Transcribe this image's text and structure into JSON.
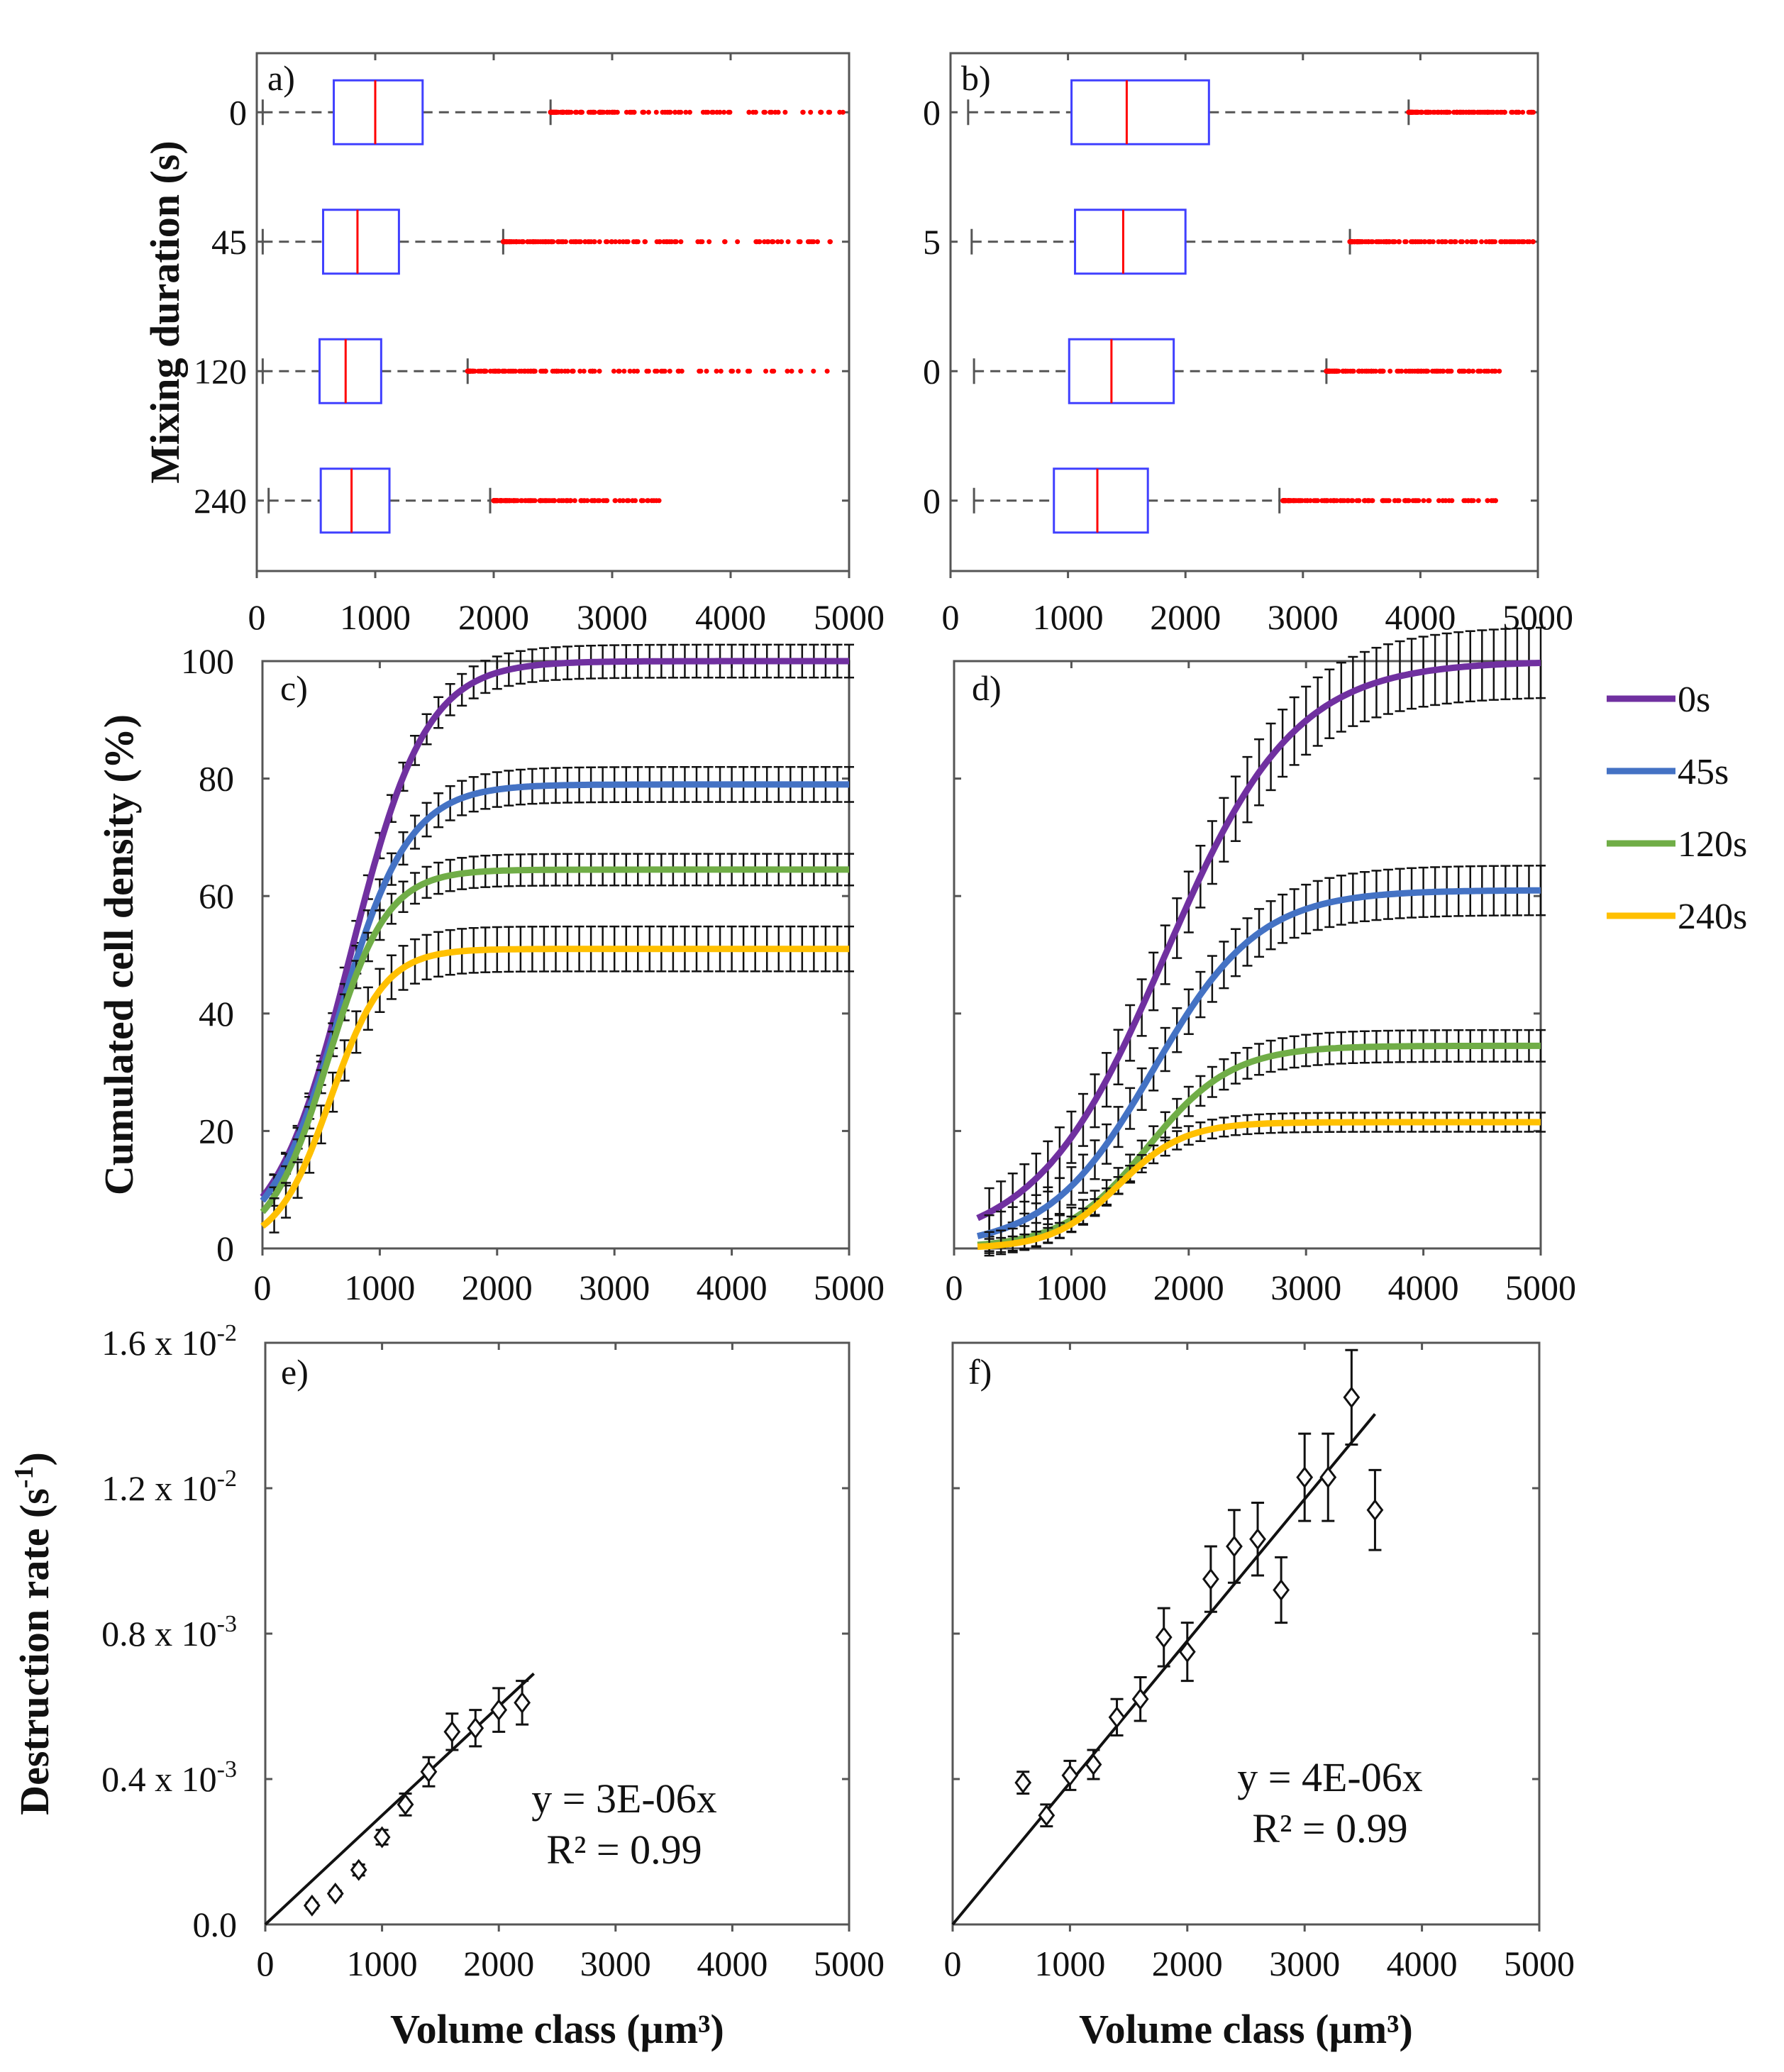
{
  "chart_data": [
    {
      "type": "box",
      "panel": "a)",
      "ylabel": "Mixing duration (s)",
      "xlim": [
        0,
        5000
      ],
      "xticks": [
        0,
        1000,
        2000,
        3000,
        4000,
        5000
      ],
      "categories": [
        "0",
        "45",
        "120",
        "240"
      ],
      "boxes": [
        {
          "min": 50,
          "q1": 650,
          "median": 1000,
          "q3": 1400,
          "max": 2480,
          "outliers_from": 2480,
          "outliers_to": 5000
        },
        {
          "min": 50,
          "q1": 560,
          "median": 850,
          "q3": 1200,
          "max": 2080,
          "outliers_from": 2080,
          "outliers_to": 4900
        },
        {
          "min": 50,
          "q1": 530,
          "median": 750,
          "q3": 1050,
          "max": 1780,
          "outliers_from": 1780,
          "outliers_to": 4850
        },
        {
          "min": 100,
          "q1": 540,
          "median": 800,
          "q3": 1120,
          "max": 1970,
          "outliers_from": 2000,
          "outliers_to": 3400
        }
      ]
    },
    {
      "type": "box",
      "panel": "b)",
      "xlim": [
        0,
        5000
      ],
      "xticks": [
        0,
        1000,
        2000,
        3000,
        4000,
        5000
      ],
      "categories": [
        "0",
        "5",
        "0",
        "0"
      ],
      "boxes": [
        {
          "min": 150,
          "q1": 1030,
          "median": 1500,
          "q3": 2200,
          "max": 3900,
          "outliers_from": 3900,
          "outliers_to": 5000
        },
        {
          "min": 180,
          "q1": 1060,
          "median": 1470,
          "q3": 2000,
          "max": 3400,
          "outliers_from": 3400,
          "outliers_to": 5000
        },
        {
          "min": 200,
          "q1": 1010,
          "median": 1370,
          "q3": 1900,
          "max": 3200,
          "outliers_from": 3200,
          "outliers_to": 4700
        },
        {
          "min": 200,
          "q1": 880,
          "median": 1250,
          "q3": 1680,
          "max": 2800,
          "outliers_from": 2830,
          "outliers_to": 4700
        }
      ]
    },
    {
      "type": "line",
      "panel": "c)",
      "ylabel": "Cumulated cell density (%)",
      "xlim": [
        0,
        5000
      ],
      "ylim": [
        0,
        100
      ],
      "xticks": [
        0,
        1000,
        2000,
        3000,
        4000,
        5000
      ],
      "yticks": [
        0,
        20,
        40,
        60,
        80,
        100
      ],
      "series": [
        {
          "name": "0s",
          "color": "#7030A0",
          "plateau": 100,
          "midpoint": 750,
          "steepness": 320,
          "error": 0.8
        },
        {
          "name": "45s",
          "color": "#4472C4",
          "plateau": 79,
          "midpoint": 650,
          "steepness": 300,
          "error": 1.4
        },
        {
          "name": "120s",
          "color": "#70AD47",
          "plateau": 64.5,
          "midpoint": 560,
          "steepness": 250,
          "error": 1.4
        },
        {
          "name": "240s",
          "color": "#FFC000",
          "plateau": 51,
          "midpoint": 580,
          "steepness": 230,
          "error": 2.8
        }
      ]
    },
    {
      "type": "line",
      "panel": "d)",
      "xlim": [
        0,
        5000
      ],
      "ylim": [
        0,
        100
      ],
      "xticks": [
        0,
        1000,
        2000,
        3000,
        4000,
        5000
      ],
      "series": [
        {
          "name": "0s",
          "color": "#7030A0",
          "plateau": 100,
          "midpoint": 1800,
          "steepness": 550,
          "error": 4
        },
        {
          "name": "45s",
          "color": "#4472C4",
          "plateau": 61,
          "midpoint": 1700,
          "steepness": 450,
          "error": 3
        },
        {
          "name": "120s",
          "color": "#70AD47",
          "plateau": 34.5,
          "midpoint": 1650,
          "steepness": 360,
          "error": 2
        },
        {
          "name": "240s",
          "color": "#FFC000",
          "plateau": 21.5,
          "midpoint": 1400,
          "steepness": 280,
          "error": 1.2
        }
      ]
    },
    {
      "type": "scatter",
      "panel": "e)",
      "ylabel": "Destruction rate (s-1)",
      "xlabel": "Volume class (µm³)",
      "xlim": [
        0,
        5000
      ],
      "ylim": [
        0,
        0.016
      ],
      "xticks": [
        0,
        1000,
        2000,
        3000,
        4000,
        5000
      ],
      "ytick_labels": [
        "0.0",
        "0.4 x 10-3",
        "0.8 x 10-3",
        "1.2 x 10-2",
        "1.6 x 10-2"
      ],
      "points": [
        {
          "x": 400,
          "y": 0.00052,
          "err": 8e-05
        },
        {
          "x": 600,
          "y": 0.00085,
          "err": 8e-05
        },
        {
          "x": 800,
          "y": 0.0015,
          "err": 0.00015
        },
        {
          "x": 1000,
          "y": 0.0024,
          "err": 0.0002
        },
        {
          "x": 1200,
          "y": 0.0033,
          "err": 0.0003
        },
        {
          "x": 1400,
          "y": 0.0042,
          "err": 0.0004
        },
        {
          "x": 1600,
          "y": 0.0053,
          "err": 0.0005
        },
        {
          "x": 1800,
          "y": 0.0054,
          "err": 0.0005
        },
        {
          "x": 2000,
          "y": 0.0059,
          "err": 0.0006
        },
        {
          "x": 2200,
          "y": 0.0061,
          "err": 0.0006
        }
      ],
      "fit_slope": 3e-06,
      "fit_xmax": 2300,
      "equation": "y = 3E-06x",
      "r2": "R² = 0.99"
    },
    {
      "type": "scatter",
      "panel": "f)",
      "xlabel": "Volume class (µm³)",
      "xlim": [
        0,
        5000
      ],
      "ylim": [
        0,
        0.016
      ],
      "xticks": [
        0,
        1000,
        2000,
        3000,
        4000,
        5000
      ],
      "points": [
        {
          "x": 600,
          "y": 0.0039,
          "err": 0.0003
        },
        {
          "x": 800,
          "y": 0.003,
          "err": 0.0003
        },
        {
          "x": 1000,
          "y": 0.0041,
          "err": 0.0004
        },
        {
          "x": 1200,
          "y": 0.0044,
          "err": 0.0004
        },
        {
          "x": 1400,
          "y": 0.0057,
          "err": 0.0005
        },
        {
          "x": 1600,
          "y": 0.0062,
          "err": 0.0006
        },
        {
          "x": 1800,
          "y": 0.0079,
          "err": 0.0008
        },
        {
          "x": 2000,
          "y": 0.0075,
          "err": 0.0008
        },
        {
          "x": 2200,
          "y": 0.0095,
          "err": 0.0009
        },
        {
          "x": 2400,
          "y": 0.0104,
          "err": 0.001
        },
        {
          "x": 2600,
          "y": 0.0106,
          "err": 0.001
        },
        {
          "x": 2800,
          "y": 0.0092,
          "err": 0.0009
        },
        {
          "x": 3000,
          "y": 0.0123,
          "err": 0.0012
        },
        {
          "x": 3200,
          "y": 0.0123,
          "err": 0.0012
        },
        {
          "x": 3400,
          "y": 0.0145,
          "err": 0.0013
        },
        {
          "x": 3600,
          "y": 0.0114,
          "err": 0.0011
        }
      ],
      "fit_slope": 3.9e-06,
      "fit_xmax": 3600,
      "equation": "y = 4E-06x",
      "r2": "R² = 0.99"
    }
  ],
  "legend": [
    {
      "label": "0s",
      "color": "#7030A0"
    },
    {
      "label": "45s",
      "color": "#4472C4"
    },
    {
      "label": "120s",
      "color": "#70AD47"
    },
    {
      "label": "240s",
      "color": "#FFC000"
    }
  ],
  "colors": {
    "box": "#4040FF",
    "median": "#FF0000",
    "outlier": "#FF0000",
    "whisker": "#555555"
  }
}
